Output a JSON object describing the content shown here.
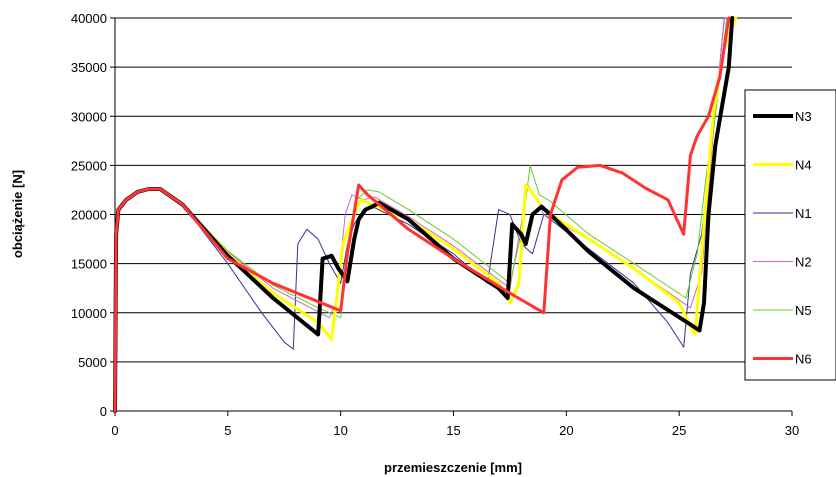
{
  "chart_data": {
    "type": "line",
    "xlabel": "przemieszczenie [mm]",
    "ylabel": "obciążenie [N]",
    "xlim": [
      0,
      30
    ],
    "ylim": [
      0,
      40000
    ],
    "xticks": [
      "0",
      "5",
      "10",
      "15",
      "20",
      "25",
      "30"
    ],
    "yticks": [
      "0",
      "5000",
      "10000",
      "15000",
      "20000",
      "25000",
      "30000",
      "35000",
      "40000"
    ],
    "grid": "horizontal",
    "legend_position": "right",
    "series": [
      {
        "name": "N3",
        "color": "#000000",
        "width": 4,
        "x": [
          0,
          0.05,
          0.15,
          0.5,
          1.0,
          1.5,
          2.0,
          3.0,
          5.0,
          7.0,
          9.0,
          9.05,
          9.2,
          9.6,
          9.9,
          10.3,
          10.6,
          10.8,
          11.1,
          11.4,
          11.7,
          13.0,
          15.0,
          17.0,
          17.4,
          17.6,
          18.0,
          18.2,
          18.5,
          18.9,
          19.3,
          21.0,
          23.0,
          25.5,
          25.9,
          26.1,
          26.3,
          26.6,
          26.9,
          27.2,
          27.35
        ],
        "y": [
          0,
          18000,
          20500,
          21500,
          22300,
          22600,
          22600,
          21000,
          15800,
          11500,
          7800,
          9500,
          15500,
          15800,
          14500,
          13200,
          17500,
          19500,
          20500,
          20800,
          21200,
          19500,
          15500,
          12500,
          11500,
          19000,
          18000,
          17000,
          20000,
          20800,
          20000,
          16200,
          12500,
          8800,
          8200,
          11000,
          20000,
          27000,
          31000,
          35000,
          40000
        ]
      },
      {
        "name": "N4",
        "color": "#ffff00",
        "width": 3,
        "x": [
          0,
          0.05,
          0.15,
          0.5,
          1.0,
          1.5,
          2.0,
          3.0,
          5.0,
          7.0,
          9.0,
          9.6,
          9.8,
          10.1,
          10.6,
          10.9,
          11.2,
          13.0,
          15.0,
          17.0,
          17.5,
          17.9,
          18.2,
          18.4,
          19.0,
          21.0,
          23.0,
          25.0,
          25.7,
          26.0,
          26.5,
          27.0,
          27.5
        ],
        "y": [
          0,
          18000,
          20500,
          21500,
          22300,
          22600,
          22600,
          21000,
          16000,
          12000,
          9000,
          7300,
          11000,
          17000,
          20000,
          21500,
          21200,
          19500,
          16500,
          13000,
          11000,
          13000,
          23000,
          22500,
          20500,
          17500,
          14500,
          11000,
          7800,
          16000,
          30000,
          37000,
          40000
        ]
      },
      {
        "name": "N1",
        "color": "#333399",
        "width": 1,
        "x": [
          0,
          0.05,
          0.15,
          0.5,
          1.0,
          1.5,
          2.0,
          3.0,
          5.0,
          6.5,
          7.5,
          7.9,
          8.1,
          8.5,
          9.0,
          9.5,
          10.0,
          10.3,
          10.6,
          11.0,
          11.5,
          13.0,
          15.0,
          16.5,
          17.0,
          17.5,
          18.0,
          18.5,
          19.0,
          21.0,
          23.0,
          24.5,
          25.2,
          25.5,
          26.0,
          26.5,
          27.0
        ],
        "y": [
          0,
          18000,
          20500,
          21500,
          22300,
          22600,
          22600,
          21000,
          15000,
          10000,
          7000,
          6300,
          17000,
          18500,
          17500,
          15000,
          13000,
          17000,
          19000,
          20500,
          20700,
          19000,
          16000,
          13000,
          20500,
          20000,
          17000,
          16000,
          20000,
          16500,
          13000,
          9000,
          6500,
          14000,
          18000,
          28000,
          40000
        ]
      },
      {
        "name": "N2",
        "color": "#cc66cc",
        "width": 1,
        "x": [
          0,
          0.05,
          0.15,
          0.5,
          1.0,
          1.5,
          2.0,
          3.0,
          5.0,
          7.0,
          9.5,
          9.8,
          10.2,
          10.5,
          11.0,
          11.5,
          13.0,
          15.0,
          17.5,
          18.0,
          18.3,
          18.7,
          19.0,
          21.0,
          23.0,
          25.5,
          26.0,
          26.5,
          27.0
        ],
        "y": [
          0,
          18000,
          20500,
          21500,
          22300,
          22600,
          22600,
          21000,
          16200,
          12500,
          9500,
          11000,
          20000,
          22000,
          21500,
          21800,
          19800,
          16800,
          12500,
          19000,
          23000,
          21500,
          20000,
          17500,
          14500,
          10500,
          14000,
          28000,
          40000
        ]
      },
      {
        "name": "N5",
        "color": "#66cc33",
        "width": 1,
        "x": [
          0,
          0.05,
          0.15,
          0.5,
          1.0,
          1.5,
          2.0,
          3.0,
          5.0,
          7.0,
          9.0,
          10.0,
          10.3,
          10.7,
          11.2,
          11.7,
          13.0,
          15.0,
          17.5,
          18.0,
          18.4,
          18.8,
          19.2,
          21.0,
          23.0,
          25.3,
          25.8,
          26.2,
          26.6,
          27.1
        ],
        "y": [
          0,
          18000,
          20500,
          21500,
          22300,
          22600,
          22600,
          21000,
          16300,
          12800,
          10500,
          9500,
          17000,
          21500,
          22500,
          22300,
          20500,
          17500,
          13000,
          18000,
          25000,
          22000,
          21500,
          18000,
          15000,
          11500,
          16000,
          24000,
          30000,
          40000
        ]
      },
      {
        "name": "N6",
        "color": "#ff3333",
        "width": 3,
        "x": [
          0,
          0.05,
          0.15,
          0.5,
          1.0,
          1.5,
          2.0,
          3.0,
          5.0,
          7.0,
          10.0,
          10.3,
          10.8,
          11.2,
          13.0,
          15.0,
          17.5,
          19.0,
          19.3,
          19.8,
          20.5,
          21.5,
          22.5,
          23.5,
          24.5,
          25.2,
          25.5,
          25.8,
          26.3,
          26.8,
          27.2
        ],
        "y": [
          0,
          18000,
          20500,
          21500,
          22300,
          22600,
          22600,
          21000,
          15500,
          13000,
          10200,
          16000,
          23000,
          22000,
          18500,
          15500,
          12000,
          10000,
          20000,
          23500,
          24800,
          25000,
          24200,
          22700,
          21500,
          18000,
          26000,
          28000,
          30000,
          34000,
          40000
        ]
      }
    ]
  }
}
